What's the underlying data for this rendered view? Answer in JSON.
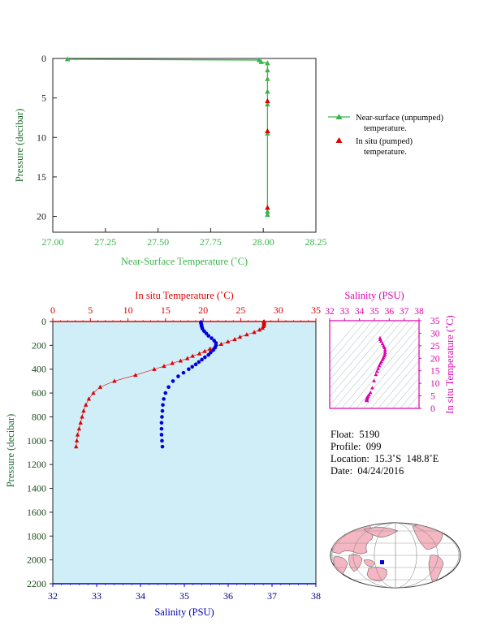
{
  "colors": {
    "green": "#3cb44b",
    "red": "#dd0000",
    "blue": "#0000dd",
    "magenta": "#dd00aa",
    "plot_bg": "#d0eef8",
    "frame": "#222222",
    "land": "#f4b6c2"
  },
  "info": {
    "float_label": "Float:",
    "float": "5190",
    "profile_label": "Profile:",
    "profile": "099",
    "location_label": "Location:",
    "location": "15.3˚S  148.8˚E",
    "date_label": "Date:",
    "date": "04/24/2016"
  },
  "chart_data": [
    {
      "type": "line",
      "id": "near-surface",
      "xlabel": "Near-Surface Temperature (˚C)",
      "ylabel": "Pressure (decibar)",
      "xlim": [
        27.0,
        28.25
      ],
      "ylim": [
        0,
        22
      ],
      "y_inverted": true,
      "xticks": [
        "27.00",
        "27.25",
        "27.50",
        "27.75",
        "28.00",
        "28.25"
      ],
      "yticks": [
        "0",
        "5",
        "10",
        "15",
        "20"
      ],
      "legend": {
        "placement": "right",
        "entries": [
          {
            "line1": "Near-surface (unpumped)",
            "line2": "temperature."
          },
          {
            "line1": "In situ (pumped)",
            "line2": "temperature."
          }
        ]
      },
      "series": [
        {
          "name": "Near-surface (unpumped) temperature.",
          "style": "line-triangle",
          "color": "green",
          "points": [
            [
              27.07,
              0.1
            ],
            [
              27.98,
              0.2
            ],
            [
              27.99,
              0.45
            ],
            [
              28.02,
              0.6
            ],
            [
              28.02,
              1.5
            ],
            [
              28.02,
              2.6
            ],
            [
              28.02,
              4.2
            ],
            [
              28.02,
              5.8
            ],
            [
              28.02,
              9.5
            ],
            [
              28.02,
              19.4
            ],
            [
              28.02,
              19.8
            ]
          ]
        },
        {
          "name": "In situ (pumped) temperature.",
          "style": "triangle",
          "color": "red",
          "points": [
            [
              28.02,
              5.4
            ],
            [
              28.02,
              9.2
            ],
            [
              28.02,
              18.9
            ]
          ]
        }
      ]
    },
    {
      "type": "scatter",
      "id": "profile",
      "ylabel": "Pressure (decibar)",
      "top_xlabel": "In situ Temperature (˚C)",
      "bottom_xlabel": "Salinity (PSU)",
      "temp_lim": [
        0,
        35
      ],
      "sal_lim": [
        32,
        38
      ],
      "ylim": [
        0,
        2200
      ],
      "y_inverted": true,
      "temp_ticks": [
        "0",
        "5",
        "10",
        "15",
        "20",
        "25",
        "30",
        "35"
      ],
      "sal_ticks": [
        "32",
        "33",
        "34",
        "35",
        "36",
        "37",
        "38"
      ],
      "pressure_ticks": [
        "0",
        "200",
        "400",
        "600",
        "800",
        "1000",
        "1200",
        "1400",
        "1600",
        "1800",
        "2000",
        "2200"
      ],
      "temperature": [
        [
          28.1,
          0
        ],
        [
          28.1,
          8
        ],
        [
          28.1,
          15
        ],
        [
          28.1,
          22
        ],
        [
          28.1,
          30
        ],
        [
          28.0,
          40
        ],
        [
          27.9,
          55
        ],
        [
          27.5,
          70
        ],
        [
          26.8,
          90
        ],
        [
          25.8,
          110
        ],
        [
          24.9,
          130
        ],
        [
          24.2,
          150
        ],
        [
          23.3,
          170
        ],
        [
          22.4,
          190
        ],
        [
          21.6,
          210
        ],
        [
          20.9,
          230
        ],
        [
          20.2,
          250
        ],
        [
          19.5,
          270
        ],
        [
          18.6,
          290
        ],
        [
          17.9,
          310
        ],
        [
          17.0,
          330
        ],
        [
          15.9,
          350
        ],
        [
          14.8,
          375
        ],
        [
          13.5,
          400
        ],
        [
          11.0,
          450
        ],
        [
          8.2,
          500
        ],
        [
          6.3,
          550
        ],
        [
          5.4,
          600
        ],
        [
          4.8,
          650
        ],
        [
          4.4,
          700
        ],
        [
          4.1,
          750
        ],
        [
          3.9,
          800
        ],
        [
          3.7,
          850
        ],
        [
          3.5,
          900
        ],
        [
          3.3,
          950
        ],
        [
          3.2,
          1000
        ],
        [
          3.1,
          1050
        ]
      ],
      "salinity": [
        [
          35.38,
          5
        ],
        [
          35.38,
          15
        ],
        [
          35.39,
          25
        ],
        [
          35.39,
          35
        ],
        [
          35.4,
          45
        ],
        [
          35.41,
          60
        ],
        [
          35.45,
          80
        ],
        [
          35.5,
          100
        ],
        [
          35.55,
          120
        ],
        [
          35.62,
          140
        ],
        [
          35.68,
          160
        ],
        [
          35.72,
          180
        ],
        [
          35.72,
          200
        ],
        [
          35.7,
          220
        ],
        [
          35.66,
          240
        ],
        [
          35.6,
          260
        ],
        [
          35.55,
          280
        ],
        [
          35.47,
          300
        ],
        [
          35.4,
          320
        ],
        [
          35.33,
          340
        ],
        [
          35.26,
          360
        ],
        [
          35.18,
          380
        ],
        [
          35.1,
          400
        ],
        [
          34.98,
          430
        ],
        [
          34.86,
          460
        ],
        [
          34.74,
          500
        ],
        [
          34.64,
          550
        ],
        [
          34.57,
          600
        ],
        [
          34.53,
          650
        ],
        [
          34.51,
          700
        ],
        [
          34.5,
          750
        ],
        [
          34.49,
          800
        ],
        [
          34.48,
          850
        ],
        [
          34.48,
          900
        ],
        [
          34.48,
          950
        ],
        [
          34.49,
          1000
        ],
        [
          34.5,
          1050
        ]
      ]
    },
    {
      "type": "scatter",
      "id": "ts-diagram",
      "top_xlabel": "Salinity (PSU)",
      "ylabel": "In situ Temperature (˚C)",
      "sal_lim": [
        32,
        38
      ],
      "temp_lim": [
        0,
        35
      ],
      "sal_ticks": [
        "32",
        "33",
        "34",
        "35",
        "36",
        "37",
        "38"
      ],
      "temp_ticks": [
        "0",
        "5",
        "10",
        "15",
        "20",
        "25",
        "30",
        "35"
      ],
      "points": [
        [
          35.38,
          28.1
        ],
        [
          35.4,
          27.5
        ],
        [
          35.45,
          26.8
        ],
        [
          35.55,
          25.8
        ],
        [
          35.62,
          24.9
        ],
        [
          35.68,
          24.2
        ],
        [
          35.72,
          23.3
        ],
        [
          35.72,
          22.4
        ],
        [
          35.7,
          21.6
        ],
        [
          35.66,
          20.9
        ],
        [
          35.6,
          20.2
        ],
        [
          35.55,
          19.5
        ],
        [
          35.47,
          18.6
        ],
        [
          35.4,
          17.9
        ],
        [
          35.33,
          17.0
        ],
        [
          35.26,
          15.9
        ],
        [
          35.18,
          14.8
        ],
        [
          35.1,
          13.5
        ],
        [
          34.98,
          11.0
        ],
        [
          34.86,
          8.2
        ],
        [
          34.74,
          6.3
        ],
        [
          34.64,
          5.4
        ],
        [
          34.57,
          4.8
        ],
        [
          34.53,
          4.4
        ],
        [
          34.51,
          4.1
        ],
        [
          34.5,
          3.9
        ],
        [
          34.49,
          3.7
        ],
        [
          34.48,
          3.5
        ],
        [
          34.48,
          3.3
        ],
        [
          34.49,
          3.2
        ],
        [
          34.5,
          3.1
        ]
      ]
    }
  ]
}
